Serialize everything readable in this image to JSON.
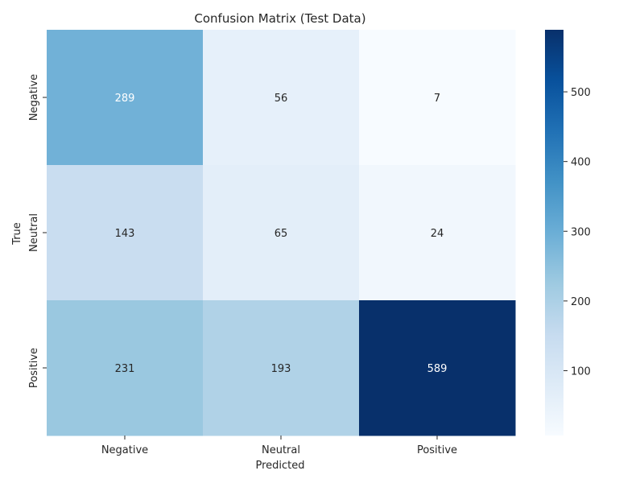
{
  "chart_data": {
    "type": "heatmap",
    "title": "Confusion Matrix (Test Data)",
    "xlabel": "Predicted",
    "ylabel": "True",
    "x_categories": [
      "Negative",
      "Neutral",
      "Positive"
    ],
    "y_categories": [
      "Negative",
      "Neutral",
      "Positive"
    ],
    "values": [
      [
        289,
        56,
        7
      ],
      [
        143,
        65,
        24
      ],
      [
        231,
        193,
        589
      ]
    ],
    "colormap": "Blues",
    "color_range": [
      7,
      589
    ],
    "colorbar_ticks": [
      100,
      200,
      300,
      400,
      500
    ],
    "colorbar_tick_labels": [
      "100",
      "200",
      "300",
      "400",
      "500"
    ]
  }
}
